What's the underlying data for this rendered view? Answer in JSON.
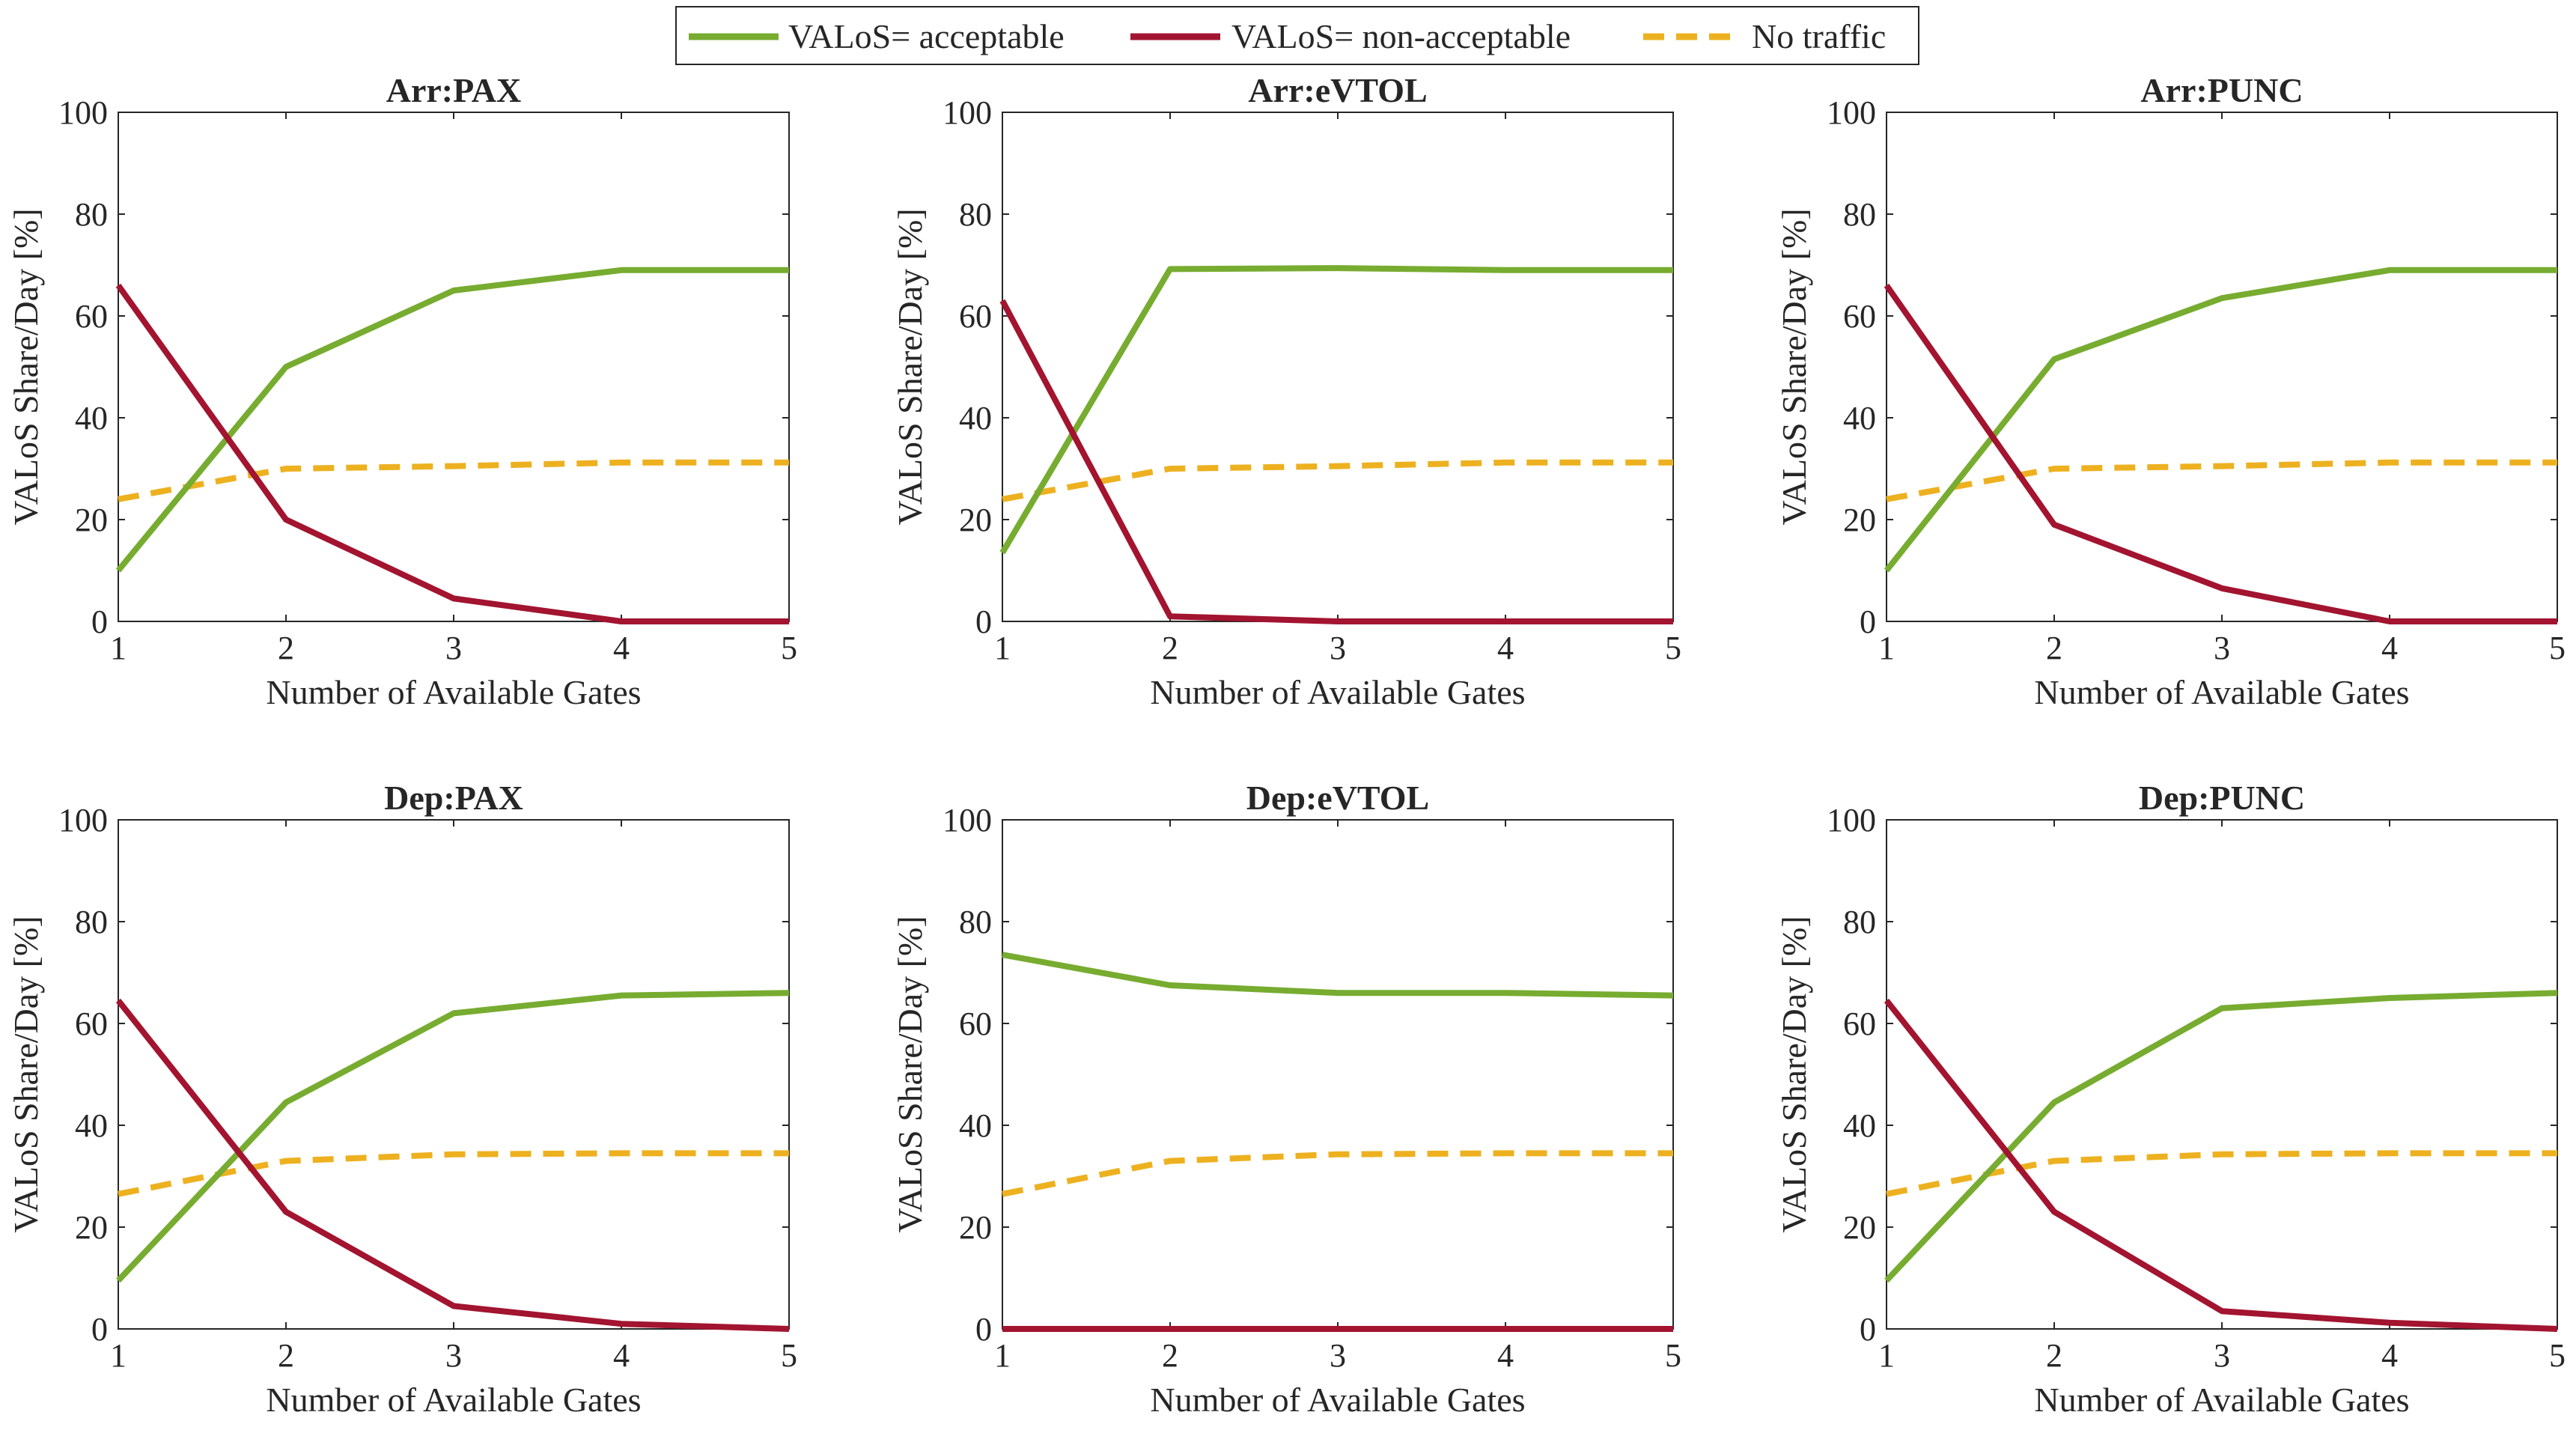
{
  "legend": {
    "entries": [
      {
        "label": "VALoS= acceptable",
        "color": "#77AC30",
        "style": "solid"
      },
      {
        "label": "VALoS= non-acceptable",
        "color": "#A2142F",
        "style": "solid"
      },
      {
        "label": "No traffic",
        "color": "#EDB120",
        "style": "dashed"
      }
    ]
  },
  "chart_data": [
    {
      "type": "line",
      "title": "Arr:PAX",
      "xlabel": "Number of Available Gates",
      "ylabel": "VALoS Share/Day [%]",
      "x": [
        1,
        2,
        3,
        4,
        5
      ],
      "xlim": [
        1,
        5
      ],
      "ylim": [
        0,
        100
      ],
      "xticks": [
        "1",
        "2",
        "3",
        "4",
        "5"
      ],
      "yticks": [
        "0",
        "20",
        "40",
        "60",
        "80",
        "100"
      ],
      "series": [
        {
          "name": "VALoS= acceptable",
          "color": "#77AC30",
          "dashed": false,
          "values": [
            10,
            50,
            65,
            69,
            69
          ]
        },
        {
          "name": "VALoS= non-acceptable",
          "color": "#A2142F",
          "dashed": false,
          "values": [
            66,
            20,
            4.5,
            0,
            0
          ]
        },
        {
          "name": "No traffic",
          "color": "#EDB120",
          "dashed": true,
          "values": [
            24,
            30,
            30.5,
            31.2,
            31.2
          ]
        }
      ]
    },
    {
      "type": "line",
      "title": "Arr:eVTOL",
      "xlabel": "Number of Available Gates",
      "ylabel": "VALoS Share/Day [%]",
      "x": [
        1,
        2,
        3,
        4,
        5
      ],
      "xlim": [
        1,
        5
      ],
      "ylim": [
        0,
        100
      ],
      "xticks": [
        "1",
        "2",
        "3",
        "4",
        "5"
      ],
      "yticks": [
        "0",
        "20",
        "40",
        "60",
        "80",
        "100"
      ],
      "series": [
        {
          "name": "VALoS= acceptable",
          "color": "#77AC30",
          "dashed": false,
          "values": [
            13.5,
            69.2,
            69.4,
            69,
            69
          ]
        },
        {
          "name": "VALoS= non-acceptable",
          "color": "#A2142F",
          "dashed": false,
          "values": [
            63,
            1,
            0,
            0,
            0
          ]
        },
        {
          "name": "No traffic",
          "color": "#EDB120",
          "dashed": true,
          "values": [
            24,
            30,
            30.5,
            31.2,
            31.2
          ]
        }
      ]
    },
    {
      "type": "line",
      "title": "Arr:PUNC",
      "xlabel": "Number of Available Gates",
      "ylabel": "VALoS Share/Day [%]",
      "x": [
        1,
        2,
        3,
        4,
        5
      ],
      "xlim": [
        1,
        5
      ],
      "ylim": [
        0,
        100
      ],
      "xticks": [
        "1",
        "2",
        "3",
        "4",
        "5"
      ],
      "yticks": [
        "0",
        "20",
        "40",
        "60",
        "80",
        "100"
      ],
      "series": [
        {
          "name": "VALoS= acceptable",
          "color": "#77AC30",
          "dashed": false,
          "values": [
            10,
            51.5,
            63.5,
            69,
            69
          ]
        },
        {
          "name": "VALoS= non-acceptable",
          "color": "#A2142F",
          "dashed": false,
          "values": [
            66,
            19,
            6.5,
            0,
            0
          ]
        },
        {
          "name": "No traffic",
          "color": "#EDB120",
          "dashed": true,
          "values": [
            24,
            30,
            30.5,
            31.2,
            31.2
          ]
        }
      ]
    },
    {
      "type": "line",
      "title": "Dep:PAX",
      "xlabel": "Number of Available Gates",
      "ylabel": "VALoS Share/Day [%]",
      "x": [
        1,
        2,
        3,
        4,
        5
      ],
      "xlim": [
        1,
        5
      ],
      "ylim": [
        0,
        100
      ],
      "xticks": [
        "1",
        "2",
        "3",
        "4",
        "5"
      ],
      "yticks": [
        "0",
        "20",
        "40",
        "60",
        "80",
        "100"
      ],
      "series": [
        {
          "name": "VALoS= acceptable",
          "color": "#77AC30",
          "dashed": false,
          "values": [
            9.5,
            44.5,
            62,
            65.5,
            66
          ]
        },
        {
          "name": "VALoS= non-acceptable",
          "color": "#A2142F",
          "dashed": false,
          "values": [
            64.5,
            23,
            4.5,
            1,
            0
          ]
        },
        {
          "name": "No traffic",
          "color": "#EDB120",
          "dashed": true,
          "values": [
            26.5,
            33,
            34.3,
            34.5,
            34.5
          ]
        }
      ]
    },
    {
      "type": "line",
      "title": "Dep:eVTOL",
      "xlabel": "Number of Available Gates",
      "ylabel": "VALoS Share/Day [%]",
      "x": [
        1,
        2,
        3,
        4,
        5
      ],
      "xlim": [
        1,
        5
      ],
      "ylim": [
        0,
        100
      ],
      "xticks": [
        "1",
        "2",
        "3",
        "4",
        "5"
      ],
      "yticks": [
        "0",
        "20",
        "40",
        "60",
        "80",
        "100"
      ],
      "series": [
        {
          "name": "VALoS= acceptable",
          "color": "#77AC30",
          "dashed": false,
          "values": [
            73.5,
            67.5,
            66,
            66,
            65.5
          ]
        },
        {
          "name": "VALoS= non-acceptable",
          "color": "#A2142F",
          "dashed": false,
          "values": [
            0,
            0,
            0,
            0,
            0
          ]
        },
        {
          "name": "No traffic",
          "color": "#EDB120",
          "dashed": true,
          "values": [
            26.5,
            33,
            34.3,
            34.5,
            34.5
          ]
        }
      ]
    },
    {
      "type": "line",
      "title": "Dep:PUNC",
      "xlabel": "Number of Available Gates",
      "ylabel": "VALoS Share/Day [%]",
      "x": [
        1,
        2,
        3,
        4,
        5
      ],
      "xlim": [
        1,
        5
      ],
      "ylim": [
        0,
        100
      ],
      "xticks": [
        "1",
        "2",
        "3",
        "4",
        "5"
      ],
      "yticks": [
        "0",
        "20",
        "40",
        "60",
        "80",
        "100"
      ],
      "series": [
        {
          "name": "VALoS= acceptable",
          "color": "#77AC30",
          "dashed": false,
          "values": [
            9.5,
            44.5,
            63,
            65,
            66
          ]
        },
        {
          "name": "VALoS= non-acceptable",
          "color": "#A2142F",
          "dashed": false,
          "values": [
            64.5,
            23,
            3.5,
            1.2,
            0
          ]
        },
        {
          "name": "No traffic",
          "color": "#EDB120",
          "dashed": true,
          "values": [
            26.5,
            33,
            34.3,
            34.5,
            34.5
          ]
        }
      ]
    }
  ]
}
